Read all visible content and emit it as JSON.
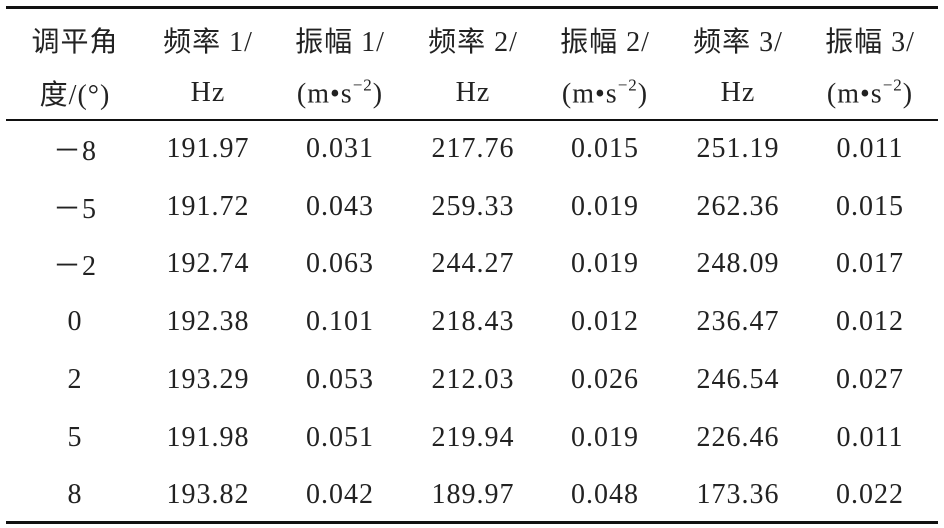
{
  "table": {
    "header": [
      {
        "top": "调平角",
        "bottom": "度/(°)"
      },
      {
        "top": "频率 1/",
        "bottom": "Hz"
      },
      {
        "top": "振幅 1/",
        "bottom": "(m•s",
        "sup": "−2",
        "end": ")"
      },
      {
        "top": "频率 2/",
        "bottom": "Hz"
      },
      {
        "top": "振幅 2/",
        "bottom": "(m•s",
        "sup": "−2",
        "end": ")"
      },
      {
        "top": "频率 3/",
        "bottom": "Hz"
      },
      {
        "top": "振幅 3/",
        "bottom": "(m•s",
        "sup": "−2",
        "end": ")"
      }
    ],
    "rows": [
      [
        "－8",
        "191.97",
        "0.031",
        "217.76",
        "0.015",
        "251.19",
        "0.011"
      ],
      [
        "－5",
        "191.72",
        "0.043",
        "259.33",
        "0.019",
        "262.36",
        "0.015"
      ],
      [
        "－2",
        "192.74",
        "0.063",
        "244.27",
        "0.019",
        "248.09",
        "0.017"
      ],
      [
        "0",
        "192.38",
        "0.101",
        "218.43",
        "0.012",
        "236.47",
        "0.012"
      ],
      [
        "2",
        "193.29",
        "0.053",
        "212.03",
        "0.026",
        "246.54",
        "0.027"
      ],
      [
        "5",
        "191.98",
        "0.051",
        "219.94",
        "0.019",
        "226.46",
        "0.011"
      ],
      [
        "8",
        "193.82",
        "0.042",
        "189.97",
        "0.048",
        "173.36",
        "0.022"
      ]
    ]
  }
}
